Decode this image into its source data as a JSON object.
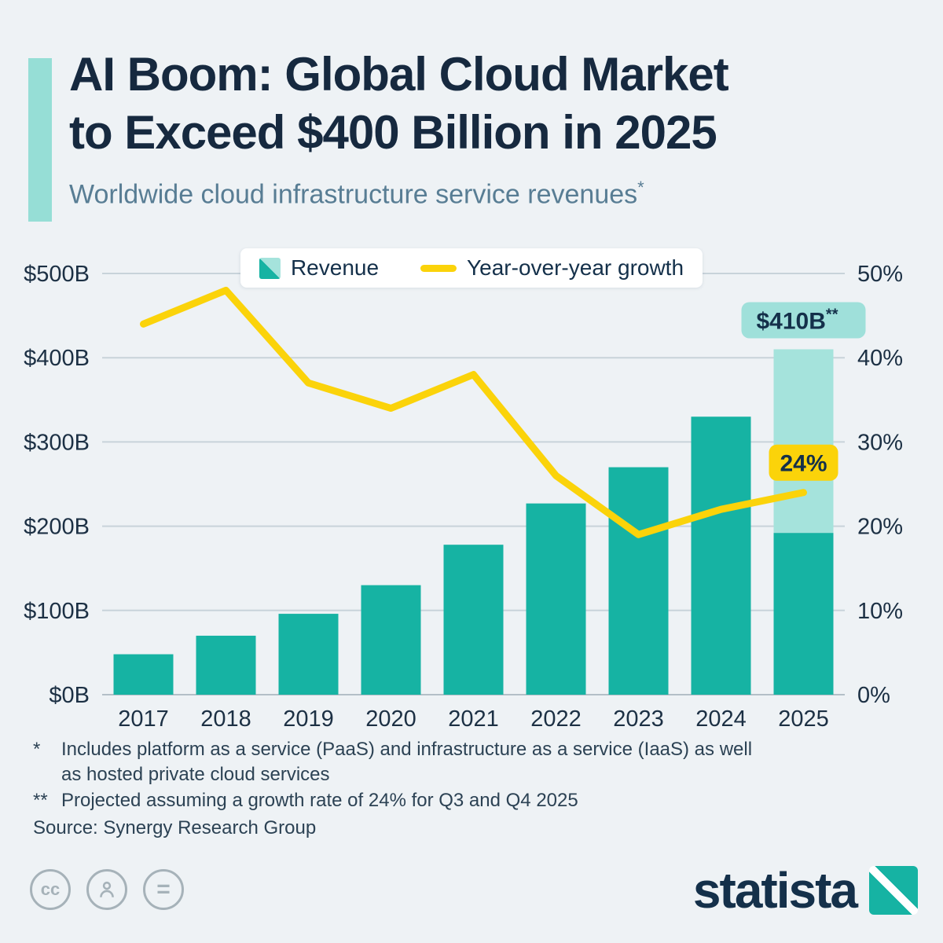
{
  "header": {
    "title_line1": "AI Boom: Global Cloud Market",
    "title_line2": "to Exceed $400 Billion in 2025",
    "subtitle": "Worldwide cloud infrastructure service revenues",
    "subtitle_marker": "*"
  },
  "legend": {
    "revenue_label": "Revenue",
    "growth_label": "Year-over-year growth"
  },
  "chart_data": {
    "type": "bar+line",
    "categories": [
      "2017",
      "2018",
      "2019",
      "2020",
      "2021",
      "2022",
      "2023",
      "2024",
      "2025"
    ],
    "series": [
      {
        "name": "Revenue",
        "type": "bar",
        "axis": "left",
        "values": [
          48,
          70,
          96,
          130,
          178,
          227,
          270,
          330,
          410
        ],
        "color": "#16b3a3",
        "projected_last_bar": {
          "solid_to": 192,
          "light_color": "#a5e3dc"
        }
      },
      {
        "name": "Year-over-year growth",
        "type": "line",
        "axis": "right",
        "values": [
          44,
          48,
          37,
          34,
          38,
          26,
          19,
          22,
          24
        ],
        "color": "#fbd30a"
      }
    ],
    "left_axis": {
      "min": 0,
      "max": 500,
      "ticks": [
        0,
        100,
        200,
        300,
        400,
        500
      ],
      "tick_labels": [
        "$0B",
        "$100B",
        "$200B",
        "$300B",
        "$400B",
        "$500B"
      ]
    },
    "right_axis": {
      "min": 0,
      "max": 50,
      "ticks": [
        0,
        10,
        20,
        30,
        40,
        50
      ],
      "tick_labels": [
        "0%",
        "10%",
        "20%",
        "30%",
        "40%",
        "50%"
      ]
    },
    "grid": true,
    "legend_position": "top-center",
    "annotations": [
      {
        "id": "bar-callout",
        "text": "$410B",
        "suffix": "**",
        "bg": "#9fe0da",
        "fg": "#14304a",
        "target": "2025-bar-top"
      },
      {
        "id": "line-callout",
        "text": "24%",
        "suffix": "",
        "bg": "#fbd30a",
        "fg": "#14304a",
        "target": "2025-line-point"
      }
    ]
  },
  "footnotes": [
    {
      "marker": "*",
      "text": "Includes platform as a service (PaaS) and infrastructure as a service (IaaS) as well as hosted private cloud services"
    },
    {
      "marker": "**",
      "text": "Projected assuming a growth rate of 24% for Q3 and Q4 2025"
    }
  ],
  "source": "Source: Synergy Research Group",
  "branding": {
    "logo_text": "statista",
    "license_icons": [
      "cc-icon",
      "attribution-person-icon",
      "equals-icon"
    ],
    "cc_label": "cc",
    "equals_label": "="
  },
  "colors": {
    "background": "#eef2f5",
    "title": "#16293f",
    "subtitle": "#587d94",
    "accent_bar": "#96ded6",
    "bar_teal": "#16b3a3",
    "bar_light_teal": "#a5e3dc",
    "line_yellow": "#fbd30a",
    "grid": "#c8d3da",
    "axis_text": "#1c3044"
  }
}
